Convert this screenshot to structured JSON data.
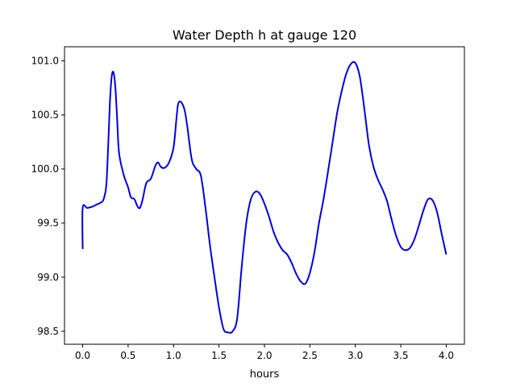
{
  "chart_data": {
    "type": "line",
    "title": "Water Depth h at gauge 120",
    "xlabel": "hours",
    "ylabel": "",
    "xlim": [
      -0.2,
      4.2
    ],
    "ylim": [
      98.38,
      101.13
    ],
    "x_ticks": [
      0.0,
      0.5,
      1.0,
      1.5,
      2.0,
      2.5,
      3.0,
      3.5,
      4.0
    ],
    "x_tick_labels": [
      "0.0",
      "0.5",
      "1.0",
      "1.5",
      "2.0",
      "2.5",
      "3.0",
      "3.5",
      "4.0"
    ],
    "y_ticks": [
      98.5,
      99.0,
      99.5,
      100.0,
      100.5,
      101.0
    ],
    "y_tick_labels": [
      "98.5",
      "99.0",
      "99.5",
      "100.0",
      "100.5",
      "101.0"
    ],
    "grid": false,
    "series": [
      {
        "color": "#0000dd",
        "points": [
          [
            0.0,
            99.26
          ],
          [
            0.0,
            99.64
          ],
          [
            0.05,
            99.64
          ],
          [
            0.1,
            99.65
          ],
          [
            0.15,
            99.67
          ],
          [
            0.2,
            99.69
          ],
          [
            0.23,
            99.72
          ],
          [
            0.26,
            99.85
          ],
          [
            0.28,
            100.2
          ],
          [
            0.3,
            100.62
          ],
          [
            0.32,
            100.86
          ],
          [
            0.34,
            100.89
          ],
          [
            0.36,
            100.75
          ],
          [
            0.38,
            100.45
          ],
          [
            0.4,
            100.15
          ],
          [
            0.45,
            99.95
          ],
          [
            0.5,
            99.83
          ],
          [
            0.53,
            99.74
          ],
          [
            0.57,
            99.72
          ],
          [
            0.6,
            99.66
          ],
          [
            0.63,
            99.64
          ],
          [
            0.66,
            99.72
          ],
          [
            0.7,
            99.87
          ],
          [
            0.75,
            99.91
          ],
          [
            0.8,
            100.03
          ],
          [
            0.83,
            100.06
          ],
          [
            0.86,
            100.02
          ],
          [
            0.9,
            100.01
          ],
          [
            0.95,
            100.06
          ],
          [
            1.0,
            100.2
          ],
          [
            1.03,
            100.45
          ],
          [
            1.05,
            100.6
          ],
          [
            1.08,
            100.62
          ],
          [
            1.12,
            100.55
          ],
          [
            1.15,
            100.4
          ],
          [
            1.2,
            100.09
          ],
          [
            1.25,
            100.0
          ],
          [
            1.3,
            99.94
          ],
          [
            1.35,
            99.65
          ],
          [
            1.4,
            99.3
          ],
          [
            1.45,
            99.0
          ],
          [
            1.5,
            98.72
          ],
          [
            1.55,
            98.52
          ],
          [
            1.6,
            98.49
          ],
          [
            1.65,
            98.5
          ],
          [
            1.7,
            98.62
          ],
          [
            1.75,
            99.1
          ],
          [
            1.8,
            99.5
          ],
          [
            1.85,
            99.72
          ],
          [
            1.9,
            99.79
          ],
          [
            1.95,
            99.77
          ],
          [
            2.0,
            99.68
          ],
          [
            2.05,
            99.56
          ],
          [
            2.1,
            99.42
          ],
          [
            2.15,
            99.32
          ],
          [
            2.2,
            99.25
          ],
          [
            2.25,
            99.21
          ],
          [
            2.3,
            99.13
          ],
          [
            2.35,
            99.03
          ],
          [
            2.4,
            98.96
          ],
          [
            2.45,
            98.94
          ],
          [
            2.5,
            99.04
          ],
          [
            2.55,
            99.23
          ],
          [
            2.6,
            99.5
          ],
          [
            2.65,
            99.72
          ],
          [
            2.7,
            99.98
          ],
          [
            2.75,
            100.25
          ],
          [
            2.8,
            100.52
          ],
          [
            2.85,
            100.72
          ],
          [
            2.9,
            100.88
          ],
          [
            2.95,
            100.97
          ],
          [
            3.0,
            100.98
          ],
          [
            3.05,
            100.85
          ],
          [
            3.1,
            100.55
          ],
          [
            3.15,
            100.22
          ],
          [
            3.2,
            100.02
          ],
          [
            3.25,
            99.9
          ],
          [
            3.3,
            99.81
          ],
          [
            3.35,
            99.7
          ],
          [
            3.4,
            99.53
          ],
          [
            3.45,
            99.38
          ],
          [
            3.5,
            99.28
          ],
          [
            3.55,
            99.25
          ],
          [
            3.6,
            99.27
          ],
          [
            3.65,
            99.35
          ],
          [
            3.7,
            99.48
          ],
          [
            3.75,
            99.62
          ],
          [
            3.8,
            99.72
          ],
          [
            3.85,
            99.71
          ],
          [
            3.9,
            99.6
          ],
          [
            3.95,
            99.4
          ],
          [
            4.0,
            99.21
          ]
        ]
      }
    ]
  }
}
